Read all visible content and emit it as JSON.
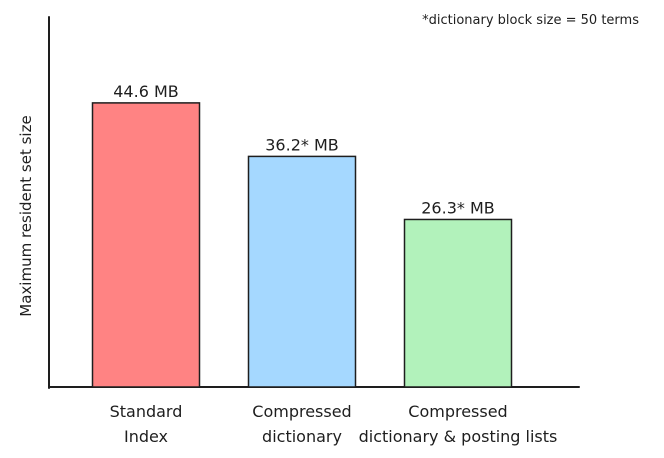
{
  "chart_data": {
    "type": "bar",
    "categories": [
      [
        "Standard",
        "Index"
      ],
      [
        "Compressed",
        "dictionary"
      ],
      [
        "Compressed",
        "dictionary & posting lists"
      ]
    ],
    "values": [
      44.6,
      36.2,
      26.3
    ],
    "value_labels": [
      "44.6 MB",
      "36.2* MB",
      "26.3* MB"
    ],
    "unit": "MB",
    "ylabel": "Maximum resident set size",
    "annotation": "*dictionary block size = 50 terms",
    "ylim": [
      0,
      50
    ],
    "grid": false,
    "colors": {
      "fills": [
        "#ff8383",
        "#a5d8ff",
        "#b2f2bb"
      ],
      "stroke": "#1e1e1e"
    }
  }
}
